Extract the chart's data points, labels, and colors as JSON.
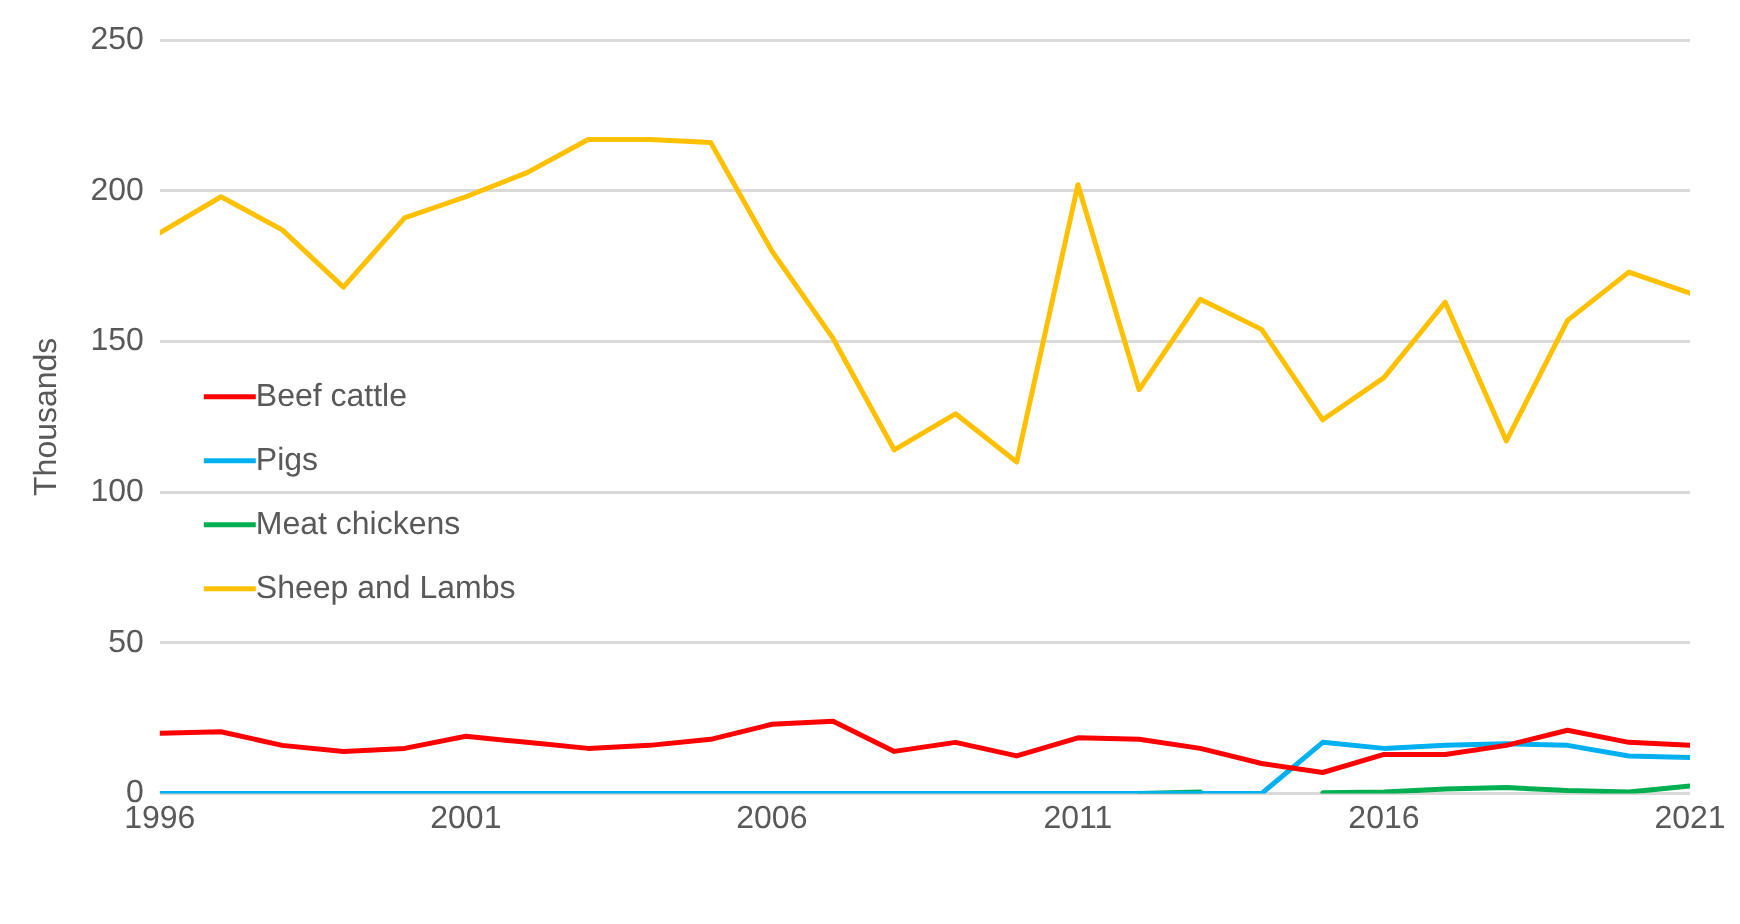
{
  "chart_data": {
    "type": "line",
    "ylabel": "Thousands",
    "x": [
      1996,
      1997,
      1998,
      1999,
      2000,
      2001,
      2002,
      2003,
      2004,
      2005,
      2006,
      2007,
      2008,
      2009,
      2010,
      2011,
      2012,
      2013,
      2014,
      2015,
      2016,
      2017,
      2018,
      2019,
      2020,
      2021
    ],
    "xlim": [
      1996,
      2021
    ],
    "xticks": [
      1996,
      2001,
      2006,
      2011,
      2016,
      2021
    ],
    "ylim": [
      0,
      250
    ],
    "yticks": [
      0,
      50,
      100,
      150,
      200,
      250
    ],
    "grid": "y",
    "legend": "left",
    "marker": "none",
    "line_style": "solid",
    "series": [
      {
        "name": "Beef cattle",
        "color": "#ff0000",
        "values": [
          20,
          20.5,
          16,
          14,
          15,
          19,
          17,
          15,
          16,
          18,
          23,
          24,
          14,
          17,
          12.5,
          18.5,
          18,
          15,
          10,
          7,
          13,
          13,
          16,
          21,
          17,
          16
        ]
      },
      {
        "name": "Pigs",
        "color": "#00b0f0",
        "values": [
          0,
          0,
          0,
          0,
          0,
          0,
          0,
          0,
          0,
          0,
          0,
          0,
          0,
          0,
          0,
          0,
          0,
          0,
          0,
          17,
          15,
          16,
          16.5,
          16,
          12.5,
          12
        ]
      },
      {
        "name": "Meat chickens",
        "color": "#00b050",
        "values": [
          null,
          null,
          null,
          null,
          null,
          null,
          null,
          null,
          null,
          null,
          null,
          null,
          null,
          null,
          null,
          null,
          0,
          0.5,
          null,
          0.3,
          0.5,
          1.5,
          2,
          1,
          0.5,
          2.5
        ]
      },
      {
        "name": "Sheep and Lambs",
        "color": "#ffc000",
        "values": [
          186,
          198,
          187,
          168,
          191,
          198,
          206,
          217,
          217,
          216,
          180,
          151,
          114,
          126,
          110,
          202,
          134,
          164,
          154,
          124,
          138,
          163,
          117,
          157,
          173,
          166
        ]
      }
    ]
  }
}
